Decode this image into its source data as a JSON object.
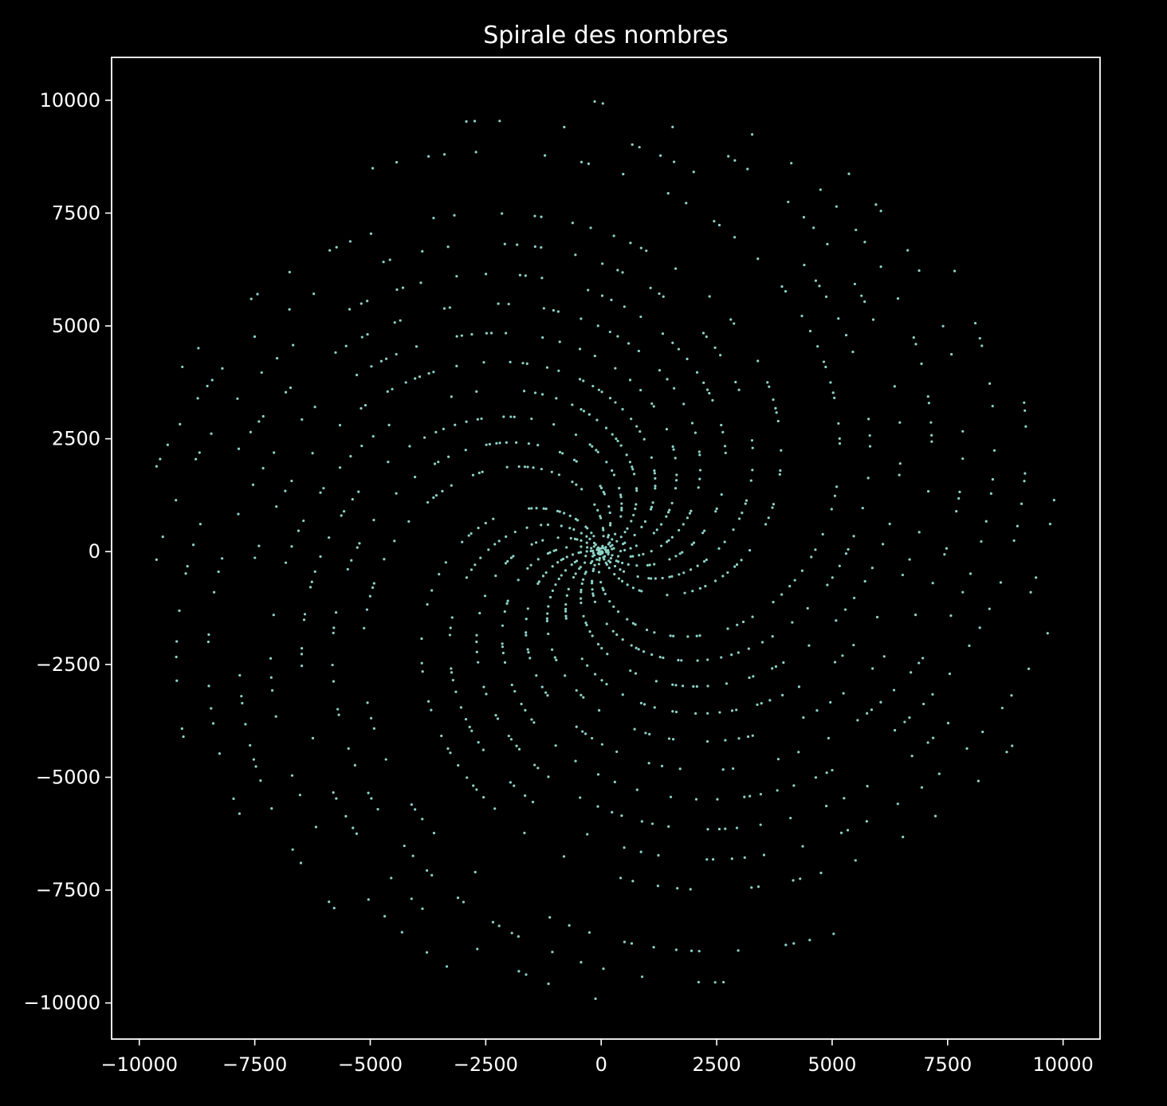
{
  "chart_data": {
    "type": "scatter",
    "title": "Spirale des nombres",
    "xlabel": "",
    "ylabel": "",
    "xlim": [
      -10600,
      10800
    ],
    "ylim": [
      -10800,
      10950
    ],
    "xticks": [
      -10000,
      -7500,
      -5000,
      -2500,
      0,
      2500,
      5000,
      7500,
      10000
    ],
    "yticks": [
      -10000,
      -7500,
      -5000,
      -2500,
      0,
      2500,
      5000,
      7500,
      10000
    ],
    "xtick_labels": [
      "−10000",
      "−7500",
      "−5000",
      "−2500",
      "0",
      "2500",
      "5000",
      "7500",
      "10000"
    ],
    "ytick_labels": [
      "−10000",
      "−7500",
      "−5000",
      "−2500",
      "0",
      "2500",
      "5000",
      "7500",
      "10000"
    ],
    "grid": false,
    "background_color": "#000000",
    "marker_color": "#8dd3c7",
    "series": [
      {
        "description_of_generation": "",
        "generator": {
          "kind": "primes_polar",
          "n_max": 10000
        }
      }
    ]
  }
}
